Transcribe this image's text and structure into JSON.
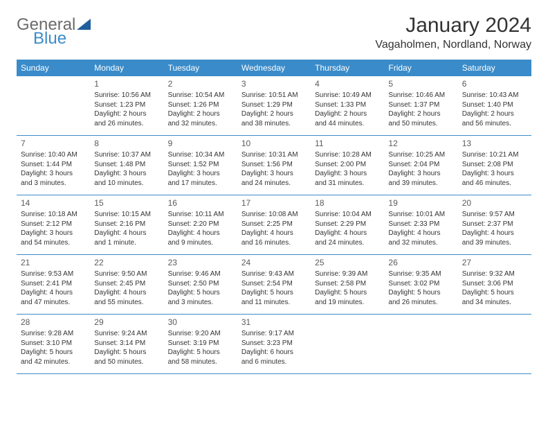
{
  "brand": {
    "word1": "General",
    "word2": "Blue",
    "icon_fill": "#1f5f9e",
    "word1_color": "#6b6b6b",
    "word2_color": "#3a8bc9"
  },
  "title": "January 2024",
  "location": "Vagaholmen, Nordland, Norway",
  "header_bg": "#3a8bc9",
  "header_text_color": "#ffffff",
  "cell_border_color": "#3a8bc9",
  "background_color": "#ffffff",
  "text_color": "#333333",
  "day_names": [
    "Sunday",
    "Monday",
    "Tuesday",
    "Wednesday",
    "Thursday",
    "Friday",
    "Saturday"
  ],
  "leading_blanks": 1,
  "trailing_blanks": 3,
  "days": [
    {
      "n": "1",
      "sunrise": "Sunrise: 10:56 AM",
      "sunset": "Sunset: 1:23 PM",
      "d1": "Daylight: 2 hours",
      "d2": "and 26 minutes."
    },
    {
      "n": "2",
      "sunrise": "Sunrise: 10:54 AM",
      "sunset": "Sunset: 1:26 PM",
      "d1": "Daylight: 2 hours",
      "d2": "and 32 minutes."
    },
    {
      "n": "3",
      "sunrise": "Sunrise: 10:51 AM",
      "sunset": "Sunset: 1:29 PM",
      "d1": "Daylight: 2 hours",
      "d2": "and 38 minutes."
    },
    {
      "n": "4",
      "sunrise": "Sunrise: 10:49 AM",
      "sunset": "Sunset: 1:33 PM",
      "d1": "Daylight: 2 hours",
      "d2": "and 44 minutes."
    },
    {
      "n": "5",
      "sunrise": "Sunrise: 10:46 AM",
      "sunset": "Sunset: 1:37 PM",
      "d1": "Daylight: 2 hours",
      "d2": "and 50 minutes."
    },
    {
      "n": "6",
      "sunrise": "Sunrise: 10:43 AM",
      "sunset": "Sunset: 1:40 PM",
      "d1": "Daylight: 2 hours",
      "d2": "and 56 minutes."
    },
    {
      "n": "7",
      "sunrise": "Sunrise: 10:40 AM",
      "sunset": "Sunset: 1:44 PM",
      "d1": "Daylight: 3 hours",
      "d2": "and 3 minutes."
    },
    {
      "n": "8",
      "sunrise": "Sunrise: 10:37 AM",
      "sunset": "Sunset: 1:48 PM",
      "d1": "Daylight: 3 hours",
      "d2": "and 10 minutes."
    },
    {
      "n": "9",
      "sunrise": "Sunrise: 10:34 AM",
      "sunset": "Sunset: 1:52 PM",
      "d1": "Daylight: 3 hours",
      "d2": "and 17 minutes."
    },
    {
      "n": "10",
      "sunrise": "Sunrise: 10:31 AM",
      "sunset": "Sunset: 1:56 PM",
      "d1": "Daylight: 3 hours",
      "d2": "and 24 minutes."
    },
    {
      "n": "11",
      "sunrise": "Sunrise: 10:28 AM",
      "sunset": "Sunset: 2:00 PM",
      "d1": "Daylight: 3 hours",
      "d2": "and 31 minutes."
    },
    {
      "n": "12",
      "sunrise": "Sunrise: 10:25 AM",
      "sunset": "Sunset: 2:04 PM",
      "d1": "Daylight: 3 hours",
      "d2": "and 39 minutes."
    },
    {
      "n": "13",
      "sunrise": "Sunrise: 10:21 AM",
      "sunset": "Sunset: 2:08 PM",
      "d1": "Daylight: 3 hours",
      "d2": "and 46 minutes."
    },
    {
      "n": "14",
      "sunrise": "Sunrise: 10:18 AM",
      "sunset": "Sunset: 2:12 PM",
      "d1": "Daylight: 3 hours",
      "d2": "and 54 minutes."
    },
    {
      "n": "15",
      "sunrise": "Sunrise: 10:15 AM",
      "sunset": "Sunset: 2:16 PM",
      "d1": "Daylight: 4 hours",
      "d2": "and 1 minute."
    },
    {
      "n": "16",
      "sunrise": "Sunrise: 10:11 AM",
      "sunset": "Sunset: 2:20 PM",
      "d1": "Daylight: 4 hours",
      "d2": "and 9 minutes."
    },
    {
      "n": "17",
      "sunrise": "Sunrise: 10:08 AM",
      "sunset": "Sunset: 2:25 PM",
      "d1": "Daylight: 4 hours",
      "d2": "and 16 minutes."
    },
    {
      "n": "18",
      "sunrise": "Sunrise: 10:04 AM",
      "sunset": "Sunset: 2:29 PM",
      "d1": "Daylight: 4 hours",
      "d2": "and 24 minutes."
    },
    {
      "n": "19",
      "sunrise": "Sunrise: 10:01 AM",
      "sunset": "Sunset: 2:33 PM",
      "d1": "Daylight: 4 hours",
      "d2": "and 32 minutes."
    },
    {
      "n": "20",
      "sunrise": "Sunrise: 9:57 AM",
      "sunset": "Sunset: 2:37 PM",
      "d1": "Daylight: 4 hours",
      "d2": "and 39 minutes."
    },
    {
      "n": "21",
      "sunrise": "Sunrise: 9:53 AM",
      "sunset": "Sunset: 2:41 PM",
      "d1": "Daylight: 4 hours",
      "d2": "and 47 minutes."
    },
    {
      "n": "22",
      "sunrise": "Sunrise: 9:50 AM",
      "sunset": "Sunset: 2:45 PM",
      "d1": "Daylight: 4 hours",
      "d2": "and 55 minutes."
    },
    {
      "n": "23",
      "sunrise": "Sunrise: 9:46 AM",
      "sunset": "Sunset: 2:50 PM",
      "d1": "Daylight: 5 hours",
      "d2": "and 3 minutes."
    },
    {
      "n": "24",
      "sunrise": "Sunrise: 9:43 AM",
      "sunset": "Sunset: 2:54 PM",
      "d1": "Daylight: 5 hours",
      "d2": "and 11 minutes."
    },
    {
      "n": "25",
      "sunrise": "Sunrise: 9:39 AM",
      "sunset": "Sunset: 2:58 PM",
      "d1": "Daylight: 5 hours",
      "d2": "and 19 minutes."
    },
    {
      "n": "26",
      "sunrise": "Sunrise: 9:35 AM",
      "sunset": "Sunset: 3:02 PM",
      "d1": "Daylight: 5 hours",
      "d2": "and 26 minutes."
    },
    {
      "n": "27",
      "sunrise": "Sunrise: 9:32 AM",
      "sunset": "Sunset: 3:06 PM",
      "d1": "Daylight: 5 hours",
      "d2": "and 34 minutes."
    },
    {
      "n": "28",
      "sunrise": "Sunrise: 9:28 AM",
      "sunset": "Sunset: 3:10 PM",
      "d1": "Daylight: 5 hours",
      "d2": "and 42 minutes."
    },
    {
      "n": "29",
      "sunrise": "Sunrise: 9:24 AM",
      "sunset": "Sunset: 3:14 PM",
      "d1": "Daylight: 5 hours",
      "d2": "and 50 minutes."
    },
    {
      "n": "30",
      "sunrise": "Sunrise: 9:20 AM",
      "sunset": "Sunset: 3:19 PM",
      "d1": "Daylight: 5 hours",
      "d2": "and 58 minutes."
    },
    {
      "n": "31",
      "sunrise": "Sunrise: 9:17 AM",
      "sunset": "Sunset: 3:23 PM",
      "d1": "Daylight: 6 hours",
      "d2": "and 6 minutes."
    }
  ]
}
